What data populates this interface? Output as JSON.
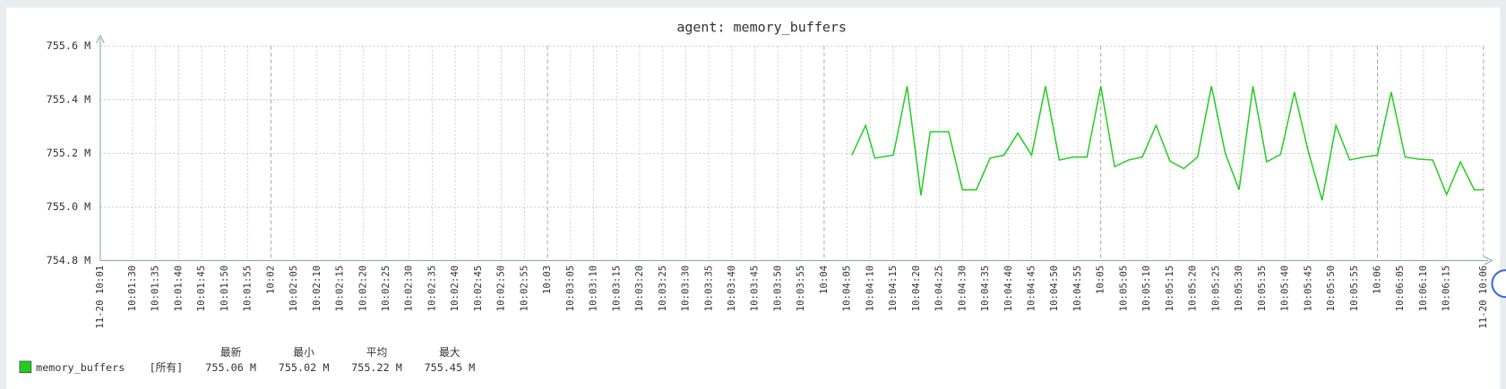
{
  "chart_data": {
    "type": "line",
    "title": "agent: memory_buffers",
    "x": [
      "10:04:06",
      "10:04:09",
      "10:04:11",
      "10:04:15",
      "10:04:18",
      "10:04:21",
      "10:04:23",
      "10:04:27",
      "10:04:30",
      "10:04:33",
      "10:04:36",
      "10:04:39",
      "10:04:42",
      "10:04:45",
      "10:04:48",
      "10:04:51",
      "10:04:54",
      "10:04:57",
      "10:05:00",
      "10:05:03",
      "10:05:06",
      "10:05:09",
      "10:05:12",
      "10:05:15",
      "10:05:18",
      "10:05:21",
      "10:05:24",
      "10:05:27",
      "10:05:30",
      "10:05:33",
      "10:05:36",
      "10:05:39",
      "10:05:42",
      "10:05:45",
      "10:05:48",
      "10:05:51",
      "10:05:54",
      "10:05:57",
      "10:06:00",
      "10:06:03",
      "10:06:06",
      "10:06:09",
      "10:06:12",
      "10:06:15",
      "10:06:18",
      "10:06:21",
      "10:06:23"
    ],
    "series": [
      {
        "name": "memory_buffers",
        "color": "#22cc22",
        "values": [
          755.193,
          755.304,
          755.182,
          755.193,
          755.45,
          755.043,
          755.28,
          755.28,
          755.064,
          755.064,
          755.182,
          755.193,
          755.275,
          755.193,
          755.45,
          755.175,
          755.186,
          755.186,
          755.45,
          755.15,
          755.175,
          755.186,
          755.304,
          755.171,
          755.143,
          755.186,
          755.45,
          755.2,
          755.064,
          755.45,
          755.168,
          755.196,
          755.428,
          755.207,
          755.025,
          755.304,
          755.175,
          755.186,
          755.193,
          755.428,
          755.186,
          755.178,
          755.175,
          755.046,
          755.168,
          755.064,
          755.064
        ]
      }
    ],
    "xlim": [
      "10:01:23",
      "10:06:23"
    ],
    "xticks": [
      {
        "value": "10:01:23",
        "label": "11-20 10:01"
      },
      "10:01:30",
      "10:01:35",
      "10:01:40",
      "10:01:45",
      "10:01:50",
      "10:01:55",
      {
        "value": "10:02:00",
        "label": "10:02"
      },
      "10:02:05",
      "10:02:10",
      "10:02:15",
      "10:02:20",
      "10:02:25",
      "10:02:30",
      "10:02:35",
      "10:02:40",
      "10:02:45",
      "10:02:50",
      "10:02:55",
      {
        "value": "10:03:00",
        "label": "10:03"
      },
      "10:03:05",
      "10:03:10",
      "10:03:15",
      "10:03:20",
      "10:03:25",
      "10:03:30",
      "10:03:35",
      "10:03:40",
      "10:03:45",
      "10:03:50",
      "10:03:55",
      {
        "value": "10:04:00",
        "label": "10:04"
      },
      "10:04:05",
      "10:04:10",
      "10:04:15",
      "10:04:20",
      "10:04:25",
      "10:04:30",
      "10:04:35",
      "10:04:40",
      "10:04:45",
      "10:04:50",
      "10:04:55",
      {
        "value": "10:05:00",
        "label": "10:05"
      },
      "10:05:05",
      "10:05:10",
      "10:05:15",
      "10:05:20",
      "10:05:25",
      "10:05:30",
      "10:05:35",
      "10:05:40",
      "10:05:45",
      "10:05:50",
      "10:05:55",
      {
        "value": "10:06:00",
        "label": "10:06"
      },
      "10:06:05",
      "10:06:10",
      "10:06:15",
      {
        "value": "10:06:23",
        "label": "11-20 10:06"
      }
    ],
    "ylim": [
      754.8,
      755.6
    ],
    "yticks": [
      {
        "value": 754.8,
        "label": "754.8 M"
      },
      {
        "value": 755.0,
        "label": "755.0 M"
      },
      {
        "value": 755.2,
        "label": "755.2 M"
      },
      {
        "value": 755.4,
        "label": "755.4 M"
      },
      {
        "value": 755.6,
        "label": "755.6 M"
      }
    ],
    "grid": true,
    "major_label_color": "#f04444",
    "legend_stats": {
      "scope": "[所有]",
      "headers": [
        "最新",
        "最小",
        "平均",
        "最大"
      ],
      "values": [
        "755.06 M",
        "755.02 M",
        "755.22 M",
        "755.45 M"
      ]
    }
  }
}
